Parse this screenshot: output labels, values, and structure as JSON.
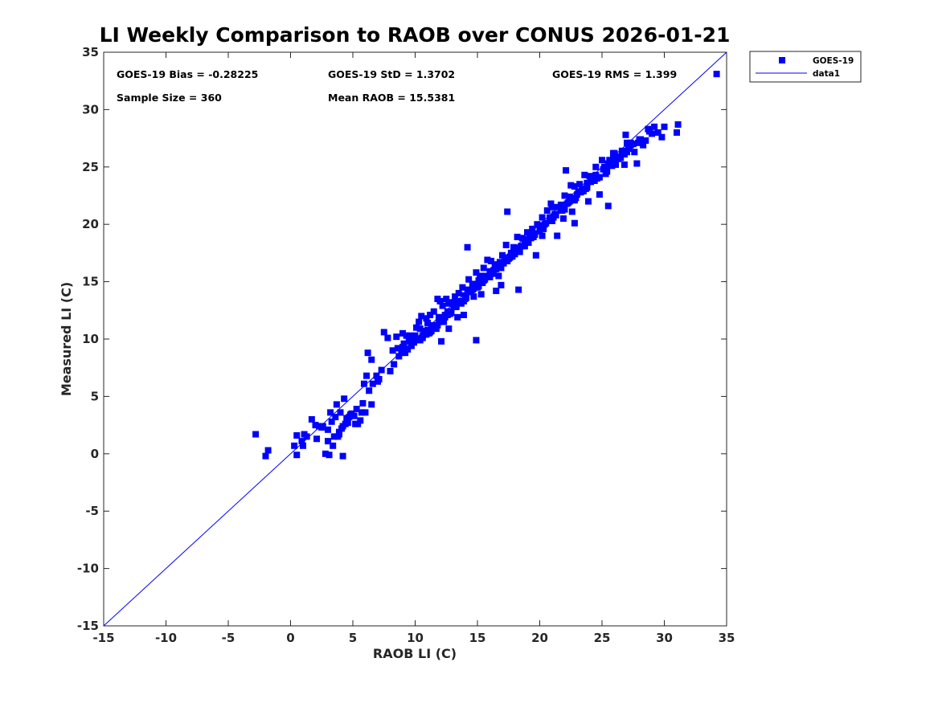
{
  "colors": {
    "series": "#0000ff",
    "axis": "#262626",
    "background": "#ffffff"
  },
  "stats": {
    "bias": "GOES-19 Bias = -0.28225",
    "std": "GOES-19 StD = 1.3702",
    "rms": "GOES-19 RMS = 1.399",
    "sample": "Sample Size = 360",
    "mean": "Mean RAOB = 15.5381"
  },
  "chart_data": {
    "type": "scatter",
    "title": "LI Weekly Comparison to RAOB over CONUS 2026-01-21",
    "xlabel": "RAOB LI (C)",
    "ylabel": "Measured LI (C)",
    "xlim": [
      -15,
      35
    ],
    "ylim": [
      -15,
      35
    ],
    "xticks": [
      -15,
      -10,
      -5,
      0,
      5,
      10,
      15,
      20,
      25,
      30,
      35
    ],
    "yticks": [
      -15,
      -10,
      -5,
      0,
      5,
      10,
      15,
      20,
      25,
      30,
      35
    ],
    "grid": false,
    "legend": {
      "placement": "top-right outside",
      "entries": [
        "GOES-19",
        "data1"
      ]
    },
    "series": [
      {
        "name": "GOES-19",
        "marker": "square",
        "x": [
          -2.8,
          -2,
          -1.8,
          0.3,
          0.5,
          0.5,
          1,
          1.1,
          1.7,
          2.1,
          2.3,
          2.6,
          2.8,
          3,
          3.1,
          3.2,
          3.4,
          3.5,
          3.6,
          3.7,
          3.8,
          3.9,
          4,
          4.1,
          4.2,
          4.3,
          4.4,
          4.6,
          4.8,
          4.9,
          5.2,
          5.4,
          5.7,
          5.8,
          6,
          6.1,
          6.2,
          6.5,
          6.9,
          7,
          7.5,
          8,
          8.2,
          8.5,
          8.7,
          9,
          9.1,
          9.3,
          9.5,
          9.8,
          10.1,
          10.3,
          10.5,
          10.7,
          11,
          11.2,
          11.5,
          11.7,
          12,
          12.2,
          12.5,
          12.7,
          13,
          13.2,
          13.5,
          13.8,
          14.1,
          14.3,
          14.6,
          14.9,
          15.2,
          15.5,
          15.8,
          16.1,
          16.4,
          16.7,
          17,
          17.3,
          17.6,
          17.9,
          18.2,
          18.6,
          19,
          19.4,
          19.8,
          20.2,
          20.6,
          21,
          21.5,
          22,
          22.4,
          22.8,
          23.2,
          23.6,
          24,
          24.5,
          25,
          25.5,
          26,
          26.5,
          27,
          27.5,
          28,
          28.5,
          29,
          29.5,
          30,
          31,
          31.1,
          34.2,
          7.3,
          10.2,
          14.2,
          14.9,
          17.4,
          18.3,
          20.2,
          22.8,
          25.5,
          26.8,
          6.5,
          8.9,
          12.7,
          13.4,
          16.5,
          19.7,
          21.4,
          23.9,
          24.8,
          27.8,
          5.9,
          9.6,
          11.8,
          13.9,
          15.3,
          17.7,
          20.9,
          22.6,
          26.1,
          29.8,
          4.2,
          7.8,
          10.9,
          12.1,
          14.7,
          16.9,
          18.9,
          22.1,
          25.9,
          28.3,
          10.9,
          11.3,
          11.6,
          11.9,
          12.3,
          12.6,
          12.9,
          13.1,
          13.4,
          13.7,
          14,
          14.4,
          14.8,
          15.1,
          15.6,
          16,
          16.3,
          16.8,
          17.2,
          17.7,
          18.1,
          18.5,
          18.8,
          19.2,
          19.6,
          20,
          20.4,
          20.8,
          21.2,
          21.7,
          22.2,
          22.6,
          23,
          23.4,
          23.8,
          24.2,
          24.7,
          25.2,
          25.7,
          26.2,
          26.7,
          27.2,
          9.4,
          9.9,
          10.6,
          11.1,
          11.8,
          12.4,
          13.3,
          13.9,
          14.5,
          15.4,
          16.2,
          17.1,
          18,
          18.8,
          19.5,
          20.3,
          21.1,
          22,
          22.9,
          23.7,
          24.6,
          25.4,
          26.3,
          27.1,
          28,
          10,
          10.4,
          10.8,
          11.4,
          12,
          12.8,
          13.6,
          14.2,
          15,
          15.7,
          16.6,
          17.5,
          18.4,
          19.3,
          20.1,
          21,
          21.8,
          22.7,
          23.5,
          24.4,
          25.3,
          26.1,
          27,
          27.9,
          28.8,
          8.6,
          9.2,
          9.7,
          10.2,
          10.6,
          11,
          11.5,
          11.9,
          12.4,
          12.8,
          13.2,
          13.7,
          14.1,
          14.6,
          15.1,
          15.5,
          16,
          16.5,
          16.9,
          17.4,
          17.8,
          18.3,
          18.7,
          19.1,
          19.6,
          20,
          20.5,
          20.9,
          21.3,
          21.8,
          22.3,
          22.8,
          23.3,
          23.8,
          24.3,
          24.8,
          25.3,
          25.8,
          26.3,
          26.8,
          27.3,
          2.5,
          3.3,
          3.9,
          4.5,
          5.1,
          5.6,
          6.3,
          4.7,
          3,
          2,
          1.3,
          0.9,
          5.3,
          6.6,
          7.1,
          8.3,
          9,
          9.7,
          10.4,
          11.2,
          11.9,
          12.6,
          13.3,
          14,
          14.7,
          15.4,
          16.1,
          16.8,
          17.5,
          18.2,
          18.9,
          19.6,
          20.3,
          21,
          21.7,
          22.4,
          23.1,
          23.8,
          24.5,
          25.2,
          25.9,
          26.6,
          27.3,
          22.5,
          24.1,
          25.6,
          26.4,
          27.6,
          28.1,
          28.7,
          29.2,
          26.9,
          25.1,
          23.5,
          21.9
        ],
        "y": [
          1.7,
          -0.2,
          0.3,
          0.7,
          1.6,
          -0.1,
          0.7,
          1.7,
          3,
          1.3,
          2.4,
          2.4,
          0,
          1.1,
          -0.1,
          3.6,
          0.7,
          1.5,
          3.2,
          4.3,
          1.5,
          1.7,
          3.6,
          2.2,
          -0.2,
          4.8,
          2.6,
          2.7,
          3.4,
          3.5,
          2.6,
          2.6,
          3.6,
          4.4,
          3.6,
          6.8,
          8.8,
          8.2,
          6.8,
          6.3,
          10.6,
          7.2,
          9,
          10.2,
          8.5,
          10.5,
          9.6,
          10.3,
          9.8,
          10.1,
          11,
          11.5,
          12,
          10.7,
          11.4,
          12.1,
          12.4,
          10.9,
          13.3,
          12.9,
          13.5,
          13.1,
          13.2,
          13.7,
          14,
          14.5,
          13.7,
          15.2,
          14.8,
          15.8,
          15.5,
          16.2,
          16.9,
          16.8,
          16.5,
          15.5,
          17.3,
          18.2,
          17.1,
          18,
          18.9,
          18.8,
          19.3,
          19.6,
          20,
          20.6,
          21.2,
          21.5,
          21.5,
          22.5,
          22.4,
          23.3,
          23.5,
          24.3,
          24.2,
          25,
          25.6,
          25.3,
          26.2,
          25.8,
          27.1,
          27,
          27.2,
          27.3,
          27.9,
          28,
          28.5,
          28,
          28.7,
          33.1,
          7.3,
          9.9,
          18,
          9.9,
          21.1,
          14.3,
          19,
          20.1,
          21.6,
          25.2,
          4.3,
          8.8,
          10.9,
          11.9,
          14.2,
          17.3,
          19,
          22,
          22.6,
          25.3,
          6.1,
          10.3,
          13.5,
          12.1,
          13.9,
          17.5,
          21.8,
          21.1,
          25.2,
          27.6,
          2.4,
          10.1,
          11.8,
          9.8,
          13.7,
          14.7,
          18.4,
          24.7,
          26.2,
          26.9,
          10.4,
          10.7,
          11,
          11.9,
          11.5,
          12.4,
          12.3,
          12.9,
          13.3,
          13.1,
          13.8,
          14.1,
          14.7,
          15.1,
          15.2,
          15.9,
          16,
          16.7,
          16.9,
          17.2,
          17.6,
          18.1,
          18.6,
          19.1,
          19.2,
          19.7,
          20,
          20.6,
          20.9,
          21.7,
          21.8,
          22.2,
          22.6,
          23.1,
          23.4,
          23.8,
          24.1,
          24.9,
          25.2,
          25.9,
          26.2,
          26.7,
          9.1,
          9.7,
          10.1,
          10.5,
          11.2,
          11.9,
          12.9,
          13.3,
          14.1,
          14.9,
          15.7,
          16.6,
          17.4,
          18.1,
          18.9,
          19.6,
          20.6,
          21.3,
          22.3,
          23.1,
          24,
          24.6,
          25.7,
          26.6,
          27.4,
          10.3,
          10.9,
          10.4,
          11.1,
          11.9,
          12.4,
          13.2,
          14.3,
          14.5,
          15.5,
          16.2,
          17.1,
          17.6,
          18.8,
          19.7,
          20.3,
          21.2,
          22.1,
          22.9,
          23.8,
          24.4,
          25.5,
          26.3,
          27.1,
          28.1,
          9.2,
          8.8,
          9.5,
          10,
          10.3,
          10.8,
          11.2,
          11.5,
          12.1,
          12.2,
          12.8,
          13.2,
          13.6,
          14.3,
          14.6,
          15.1,
          15.4,
          16.1,
          16.2,
          16.8,
          17.2,
          17.8,
          18.1,
          18.4,
          19.1,
          19.4,
          20.1,
          20.3,
          20.8,
          21.2,
          21.9,
          22.1,
          22.8,
          23.2,
          23.9,
          24.1,
          24.8,
          25.1,
          25.9,
          26.1,
          26.9,
          2.3,
          2.8,
          1.9,
          3.1,
          3.3,
          2.9,
          5.5,
          3.2,
          2.1,
          2.5,
          1.5,
          1.1,
          3.9,
          6.1,
          6.5,
          7.8,
          9.3,
          9.4,
          9.9,
          10.6,
          11.5,
          12.1,
          12.8,
          13.5,
          14.4,
          14.9,
          15.7,
          16.3,
          17,
          17.9,
          18.7,
          19.2,
          19.9,
          20.6,
          21.3,
          22,
          22.8,
          23.6,
          24.3,
          25,
          25.7,
          26.4,
          27.1,
          23.4,
          23.7,
          25.6,
          25.8,
          26.3,
          27.4,
          28.3,
          28.5,
          27.8,
          24.8,
          22.9,
          20.5
        ]
      },
      {
        "name": "data1",
        "type": "line",
        "x": [
          -15,
          35
        ],
        "y": [
          -15,
          35
        ]
      }
    ]
  }
}
